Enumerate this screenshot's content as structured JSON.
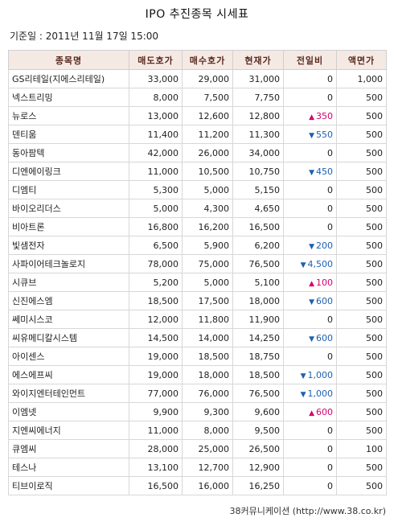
{
  "title": "IPO 추진종목 시세표",
  "date_line": "기준일 : 2011년 11월 17일 15:00",
  "columns": [
    "종목명",
    "매도호가",
    "매수호가",
    "현재가",
    "전일비",
    "액면가"
  ],
  "rows": [
    {
      "name": "GS리테일(지에스리테일)",
      "ask": "33,000",
      "bid": "29,000",
      "price": "31,000",
      "dir": "",
      "change": "0",
      "par": "1,000"
    },
    {
      "name": "넥스트리밍",
      "ask": "8,000",
      "bid": "7,500",
      "price": "7,750",
      "dir": "",
      "change": "0",
      "par": "500"
    },
    {
      "name": "뉴로스",
      "ask": "13,000",
      "bid": "12,600",
      "price": "12,800",
      "dir": "up",
      "change": "350",
      "par": "500"
    },
    {
      "name": "덴티움",
      "ask": "11,400",
      "bid": "11,200",
      "price": "11,300",
      "dir": "down",
      "change": "550",
      "par": "500"
    },
    {
      "name": "동아팜텍",
      "ask": "42,000",
      "bid": "26,000",
      "price": "34,000",
      "dir": "",
      "change": "0",
      "par": "500"
    },
    {
      "name": "디엔에이링크",
      "ask": "11,000",
      "bid": "10,500",
      "price": "10,750",
      "dir": "down",
      "change": "450",
      "par": "500"
    },
    {
      "name": "디엠티",
      "ask": "5,300",
      "bid": "5,000",
      "price": "5,150",
      "dir": "",
      "change": "0",
      "par": "500"
    },
    {
      "name": "바이오리더스",
      "ask": "5,000",
      "bid": "4,300",
      "price": "4,650",
      "dir": "",
      "change": "0",
      "par": "500"
    },
    {
      "name": "비아트론",
      "ask": "16,800",
      "bid": "16,200",
      "price": "16,500",
      "dir": "",
      "change": "0",
      "par": "500"
    },
    {
      "name": "빛샘전자",
      "ask": "6,500",
      "bid": "5,900",
      "price": "6,200",
      "dir": "down",
      "change": "200",
      "par": "500"
    },
    {
      "name": "사파이어테크놀로지",
      "ask": "78,000",
      "bid": "75,000",
      "price": "76,500",
      "dir": "down",
      "change": "4,500",
      "par": "500"
    },
    {
      "name": "시큐브",
      "ask": "5,200",
      "bid": "5,000",
      "price": "5,100",
      "dir": "up",
      "change": "100",
      "par": "500"
    },
    {
      "name": "신진에스엠",
      "ask": "18,500",
      "bid": "17,500",
      "price": "18,000",
      "dir": "down",
      "change": "600",
      "par": "500"
    },
    {
      "name": "쎄미시스코",
      "ask": "12,000",
      "bid": "11,800",
      "price": "11,900",
      "dir": "",
      "change": "0",
      "par": "500"
    },
    {
      "name": "씨유메디칼시스템",
      "ask": "14,500",
      "bid": "14,000",
      "price": "14,250",
      "dir": "down",
      "change": "600",
      "par": "500"
    },
    {
      "name": "아이센스",
      "ask": "19,000",
      "bid": "18,500",
      "price": "18,750",
      "dir": "",
      "change": "0",
      "par": "500"
    },
    {
      "name": "에스에프씨",
      "ask": "19,000",
      "bid": "18,000",
      "price": "18,500",
      "dir": "down",
      "change": "1,000",
      "par": "500"
    },
    {
      "name": "와이지엔터테인먼트",
      "ask": "77,000",
      "bid": "76,000",
      "price": "76,500",
      "dir": "down",
      "change": "1,000",
      "par": "500"
    },
    {
      "name": "이엠넷",
      "ask": "9,900",
      "bid": "9,300",
      "price": "9,600",
      "dir": "up",
      "change": "600",
      "par": "500"
    },
    {
      "name": "지엔씨에너지",
      "ask": "11,000",
      "bid": "8,000",
      "price": "9,500",
      "dir": "",
      "change": "0",
      "par": "500"
    },
    {
      "name": "큐엠씨",
      "ask": "28,000",
      "bid": "25,000",
      "price": "26,500",
      "dir": "",
      "change": "0",
      "par": "100"
    },
    {
      "name": "테스나",
      "ask": "13,100",
      "bid": "12,700",
      "price": "12,900",
      "dir": "",
      "change": "0",
      "par": "500"
    },
    {
      "name": "티브이로직",
      "ask": "16,500",
      "bid": "16,000",
      "price": "16,250",
      "dir": "",
      "change": "0",
      "par": "500"
    }
  ],
  "icons": {
    "up": "▲",
    "down": "▼"
  },
  "colors": {
    "header_bg": "#f5e9e4",
    "up": "#d6006e",
    "down": "#1e5fb0"
  },
  "footer": "38커뮤니케이션 (http://www.38.co.kr)"
}
